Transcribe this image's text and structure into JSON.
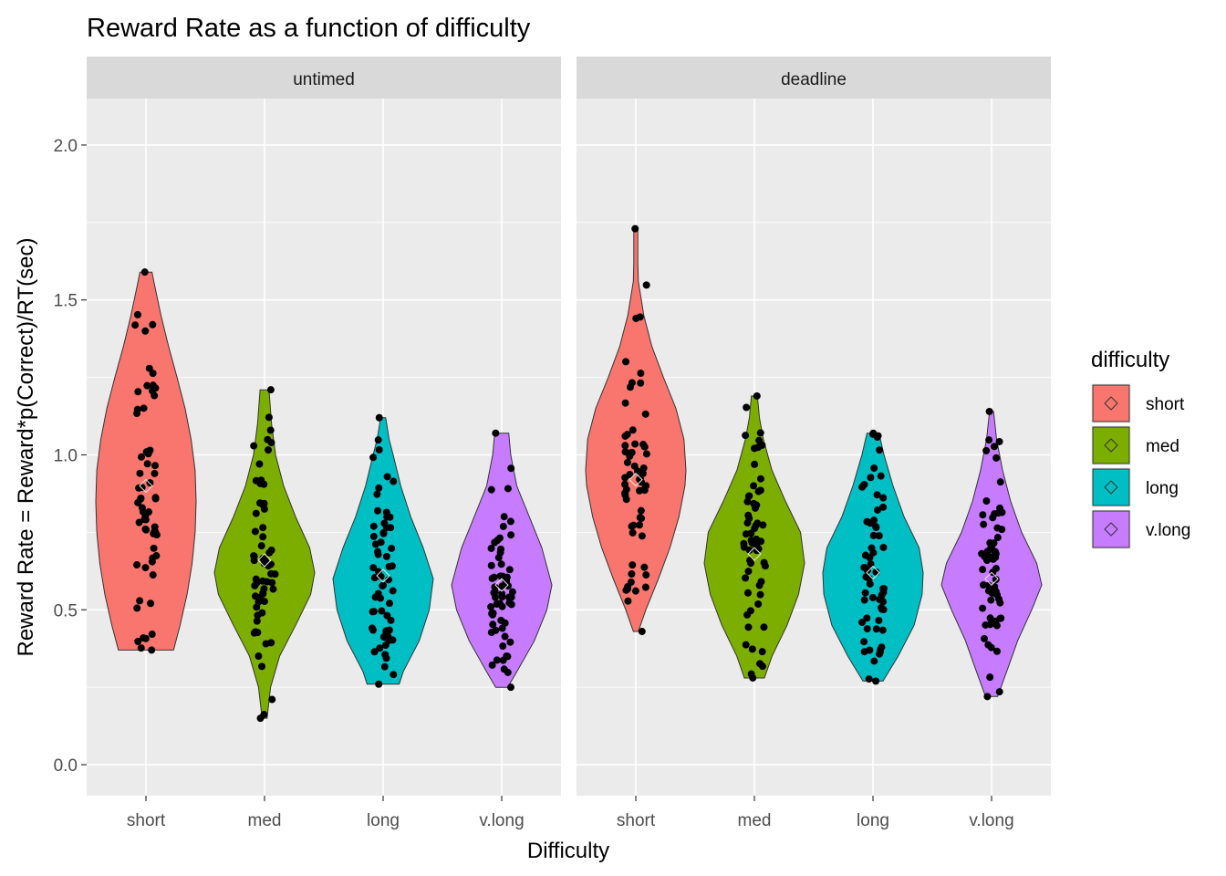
{
  "chart_data": {
    "type": "violin",
    "title": "Reward Rate as a function of difficulty",
    "xlabel": "Difficulty",
    "ylabel": "Reward Rate = Reward*p(Correct)/RT(sec)",
    "ylim": [
      -0.1,
      2.15
    ],
    "yticks": [
      0.0,
      0.5,
      1.0,
      1.5,
      2.0
    ],
    "ytick_labels": [
      "0.0",
      "0.5",
      "1.0",
      "1.5",
      "2.0"
    ],
    "categories": [
      "short",
      "med",
      "long",
      "v.long"
    ],
    "grid": true,
    "legend": {
      "title": "difficulty",
      "position": "right",
      "entries": [
        "short",
        "med",
        "long",
        "v.long"
      ]
    },
    "colors": {
      "short": "#F8766D",
      "med": "#7CAE00",
      "long": "#00BFC4",
      "v.long": "#C77CFF"
    },
    "panels": [
      {
        "label": "untimed",
        "groups": [
          {
            "category": "short",
            "min": 0.37,
            "max": 1.59,
            "mean": 0.9,
            "profile": [
              [
                0.37,
                0.55
              ],
              [
                0.45,
                0.68
              ],
              [
                0.55,
                0.82
              ],
              [
                0.65,
                0.92
              ],
              [
                0.75,
                0.98
              ],
              [
                0.85,
                1.0
              ],
              [
                0.95,
                0.98
              ],
              [
                1.05,
                0.9
              ],
              [
                1.15,
                0.78
              ],
              [
                1.25,
                0.62
              ],
              [
                1.35,
                0.45
              ],
              [
                1.45,
                0.3
              ],
              [
                1.55,
                0.17
              ],
              [
                1.59,
                0.12
              ]
            ]
          },
          {
            "category": "med",
            "min": 0.15,
            "max": 1.21,
            "mean": 0.66,
            "profile": [
              [
                0.15,
                0.05
              ],
              [
                0.25,
                0.12
              ],
              [
                0.35,
                0.3
              ],
              [
                0.45,
                0.62
              ],
              [
                0.55,
                0.92
              ],
              [
                0.62,
                1.0
              ],
              [
                0.7,
                0.9
              ],
              [
                0.8,
                0.62
              ],
              [
                0.9,
                0.38
              ],
              [
                1.0,
                0.22
              ],
              [
                1.1,
                0.14
              ],
              [
                1.21,
                0.09
              ]
            ]
          },
          {
            "category": "long",
            "min": 0.26,
            "max": 1.12,
            "mean": 0.61,
            "profile": [
              [
                0.26,
                0.32
              ],
              [
                0.3,
                0.4
              ],
              [
                0.4,
                0.72
              ],
              [
                0.5,
                0.92
              ],
              [
                0.6,
                1.0
              ],
              [
                0.7,
                0.8
              ],
              [
                0.8,
                0.55
              ],
              [
                0.9,
                0.35
              ],
              [
                1.0,
                0.2
              ],
              [
                1.05,
                0.12
              ],
              [
                1.12,
                0.05
              ]
            ]
          },
          {
            "category": "v.long",
            "min": 0.25,
            "max": 1.07,
            "mean": 0.58,
            "profile": [
              [
                0.25,
                0.12
              ],
              [
                0.3,
                0.3
              ],
              [
                0.4,
                0.65
              ],
              [
                0.5,
                0.9
              ],
              [
                0.58,
                1.0
              ],
              [
                0.7,
                0.8
              ],
              [
                0.8,
                0.55
              ],
              [
                0.9,
                0.3
              ],
              [
                1.0,
                0.18
              ],
              [
                1.07,
                0.14
              ]
            ]
          }
        ]
      },
      {
        "label": "deadline",
        "groups": [
          {
            "category": "short",
            "min": 0.43,
            "max": 1.73,
            "mean": 0.92,
            "profile": [
              [
                0.43,
                0.05
              ],
              [
                0.5,
                0.2
              ],
              [
                0.6,
                0.45
              ],
              [
                0.7,
                0.68
              ],
              [
                0.8,
                0.86
              ],
              [
                0.9,
                0.98
              ],
              [
                0.95,
                1.0
              ],
              [
                1.05,
                0.96
              ],
              [
                1.15,
                0.8
              ],
              [
                1.25,
                0.55
              ],
              [
                1.35,
                0.32
              ],
              [
                1.45,
                0.16
              ],
              [
                1.56,
                0.05
              ],
              [
                1.62,
                0.04
              ],
              [
                1.73,
                0.04
              ]
            ]
          },
          {
            "category": "med",
            "min": 0.28,
            "max": 1.19,
            "mean": 0.68,
            "profile": [
              [
                0.28,
                0.2
              ],
              [
                0.35,
                0.35
              ],
              [
                0.45,
                0.65
              ],
              [
                0.55,
                0.88
              ],
              [
                0.65,
                1.0
              ],
              [
                0.75,
                0.92
              ],
              [
                0.85,
                0.62
              ],
              [
                0.95,
                0.35
              ],
              [
                1.05,
                0.18
              ],
              [
                1.12,
                0.1
              ],
              [
                1.19,
                0.06
              ]
            ]
          },
          {
            "category": "long",
            "min": 0.27,
            "max": 1.07,
            "mean": 0.62,
            "profile": [
              [
                0.27,
                0.2
              ],
              [
                0.35,
                0.5
              ],
              [
                0.45,
                0.82
              ],
              [
                0.55,
                0.98
              ],
              [
                0.62,
                1.0
              ],
              [
                0.7,
                0.92
              ],
              [
                0.8,
                0.62
              ],
              [
                0.9,
                0.4
              ],
              [
                1.0,
                0.22
              ],
              [
                1.07,
                0.12
              ]
            ]
          },
          {
            "category": "v.long",
            "min": 0.22,
            "max": 1.14,
            "mean": 0.6,
            "profile": [
              [
                0.22,
                0.12
              ],
              [
                0.3,
                0.3
              ],
              [
                0.4,
                0.52
              ],
              [
                0.5,
                0.8
              ],
              [
                0.58,
                1.0
              ],
              [
                0.65,
                0.9
              ],
              [
                0.75,
                0.6
              ],
              [
                0.85,
                0.38
              ],
              [
                0.95,
                0.22
              ],
              [
                1.05,
                0.1
              ],
              [
                1.14,
                0.04
              ]
            ]
          }
        ]
      }
    ]
  }
}
